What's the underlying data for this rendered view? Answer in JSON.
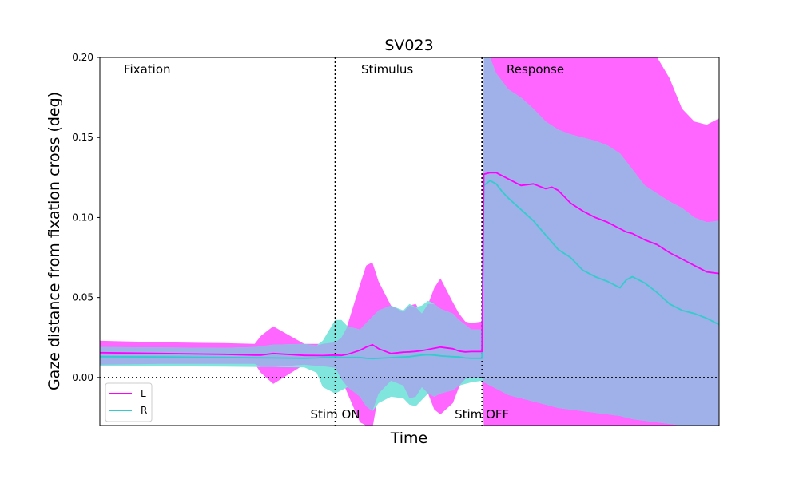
{
  "chart_data": {
    "type": "line",
    "title": "SV023",
    "xlabel": "Time",
    "ylabel": "Gaze distance from fixation cross (deg)",
    "xlim": [
      0,
      100
    ],
    "ylim": [
      -0.03,
      0.2
    ],
    "yticks": [
      0.0,
      0.05,
      0.1,
      0.15,
      0.2
    ],
    "ytick_labels": [
      "0.00",
      "0.05",
      "0.10",
      "0.15",
      "0.20"
    ],
    "grid": false,
    "legend": "lower-left",
    "phases": [
      "Fixation",
      "Stimulus",
      "Response"
    ],
    "events": [
      {
        "label": "Stim ON",
        "x": 38
      },
      {
        "label": "Stim OFF",
        "x": 61.7
      }
    ],
    "reference_y": 0.0,
    "series": [
      {
        "name": "L",
        "color": "#ff00ff",
        "band_color": "#ff66ff",
        "x": [
          0,
          10,
          20,
          25,
          26,
          28,
          33,
          36,
          38,
          39,
          40,
          42,
          43,
          44,
          45,
          47,
          49,
          50,
          51,
          52,
          53,
          54,
          55,
          57,
          58,
          59,
          60,
          61.7,
          62,
          63,
          64,
          65,
          66,
          68,
          70,
          72,
          73,
          74,
          75,
          76,
          78,
          80,
          82,
          84,
          85,
          86,
          88,
          90,
          92,
          94,
          96,
          98,
          100
        ],
        "mean": [
          0.0155,
          0.015,
          0.0145,
          0.014,
          0.014,
          0.015,
          0.0138,
          0.0137,
          0.014,
          0.0138,
          0.0145,
          0.017,
          0.019,
          0.0205,
          0.018,
          0.015,
          0.0158,
          0.016,
          0.0163,
          0.0168,
          0.0175,
          0.0183,
          0.019,
          0.018,
          0.0165,
          0.016,
          0.0162,
          0.0162,
          0.127,
          0.128,
          0.128,
          0.126,
          0.124,
          0.12,
          0.121,
          0.118,
          0.119,
          0.117,
          0.113,
          0.109,
          0.104,
          0.1,
          0.097,
          0.093,
          0.091,
          0.09,
          0.086,
          0.083,
          0.078,
          0.074,
          0.07,
          0.066,
          0.065
        ],
        "upper": [
          0.023,
          0.022,
          0.0215,
          0.021,
          0.026,
          0.032,
          0.021,
          0.021,
          0.022,
          0.025,
          0.033,
          0.058,
          0.07,
          0.072,
          0.06,
          0.045,
          0.041,
          0.045,
          0.046,
          0.04,
          0.046,
          0.056,
          0.062,
          0.047,
          0.04,
          0.035,
          0.034,
          0.035,
          0.2,
          0.2,
          0.2,
          0.2,
          0.2,
          0.2,
          0.2,
          0.2,
          0.2,
          0.2,
          0.2,
          0.2,
          0.2,
          0.2,
          0.2,
          0.2,
          0.2,
          0.2,
          0.2,
          0.2,
          0.187,
          0.168,
          0.16,
          0.158,
          0.162
        ],
        "lower": [
          0.008,
          0.0085,
          0.0085,
          0.0085,
          0.003,
          -0.004,
          0.008,
          0.007,
          0.006,
          -0.001,
          -0.01,
          -0.028,
          -0.03,
          -0.032,
          -0.01,
          -0.002,
          -0.005,
          -0.013,
          -0.012,
          -0.006,
          -0.01,
          -0.02,
          -0.023,
          -0.016,
          -0.006,
          -0.001,
          0.0,
          0.0,
          -0.03,
          -0.03,
          -0.03,
          -0.03,
          -0.03,
          -0.03,
          -0.03,
          -0.03,
          -0.03,
          -0.03,
          -0.03,
          -0.03,
          -0.03,
          -0.03,
          -0.03,
          -0.03,
          -0.03,
          -0.03,
          -0.03,
          -0.03,
          -0.03,
          -0.03,
          -0.03,
          -0.03,
          -0.03
        ]
      },
      {
        "name": "R",
        "color": "#33cccc",
        "band_color": "#7fe5dd",
        "x": [
          0,
          10,
          20,
          25,
          28,
          33,
          35,
          36,
          38,
          39,
          40,
          42,
          43,
          44,
          45,
          47,
          49,
          50,
          51,
          52,
          53,
          54,
          55,
          57,
          58,
          59,
          60,
          61.7,
          62,
          63,
          64,
          65,
          66,
          68,
          70,
          72,
          74,
          76,
          78,
          80,
          82,
          84,
          85,
          86,
          88,
          90,
          92,
          94,
          96,
          98,
          100
        ],
        "mean": [
          0.013,
          0.0128,
          0.0125,
          0.0123,
          0.0122,
          0.012,
          0.0122,
          0.0125,
          0.013,
          0.0125,
          0.0125,
          0.0125,
          0.012,
          0.0118,
          0.012,
          0.0124,
          0.0128,
          0.013,
          0.0135,
          0.014,
          0.0142,
          0.014,
          0.0135,
          0.013,
          0.0128,
          0.0122,
          0.012,
          0.012,
          0.12,
          0.123,
          0.121,
          0.116,
          0.112,
          0.105,
          0.098,
          0.089,
          0.08,
          0.075,
          0.067,
          0.063,
          0.06,
          0.056,
          0.061,
          0.063,
          0.059,
          0.053,
          0.046,
          0.042,
          0.04,
          0.037,
          0.033
        ],
        "upper": [
          0.019,
          0.0188,
          0.0185,
          0.019,
          0.0205,
          0.021,
          0.02,
          0.023,
          0.036,
          0.036,
          0.032,
          0.03,
          0.034,
          0.038,
          0.042,
          0.045,
          0.042,
          0.046,
          0.044,
          0.045,
          0.048,
          0.046,
          0.043,
          0.04,
          0.036,
          0.033,
          0.03,
          0.03,
          0.2,
          0.2,
          0.19,
          0.185,
          0.18,
          0.175,
          0.168,
          0.16,
          0.155,
          0.152,
          0.15,
          0.148,
          0.145,
          0.14,
          0.135,
          0.13,
          0.12,
          0.115,
          0.11,
          0.106,
          0.1,
          0.097,
          0.098
        ],
        "lower": [
          0.007,
          0.007,
          0.0068,
          0.0066,
          0.0065,
          0.0063,
          0.003,
          -0.006,
          -0.01,
          -0.008,
          -0.006,
          -0.012,
          -0.018,
          -0.021,
          -0.016,
          -0.012,
          -0.013,
          -0.017,
          -0.018,
          -0.014,
          -0.01,
          -0.012,
          -0.01,
          -0.008,
          -0.005,
          -0.004,
          -0.003,
          -0.002,
          -0.003,
          -0.005,
          -0.007,
          -0.009,
          -0.011,
          -0.013,
          -0.015,
          -0.017,
          -0.019,
          -0.02,
          -0.021,
          -0.022,
          -0.023,
          -0.024,
          -0.025,
          -0.026,
          -0.027,
          -0.028,
          -0.029,
          -0.03,
          -0.03,
          -0.03,
          -0.03
        ]
      }
    ],
    "overlap_color": "#9fb1e8"
  }
}
